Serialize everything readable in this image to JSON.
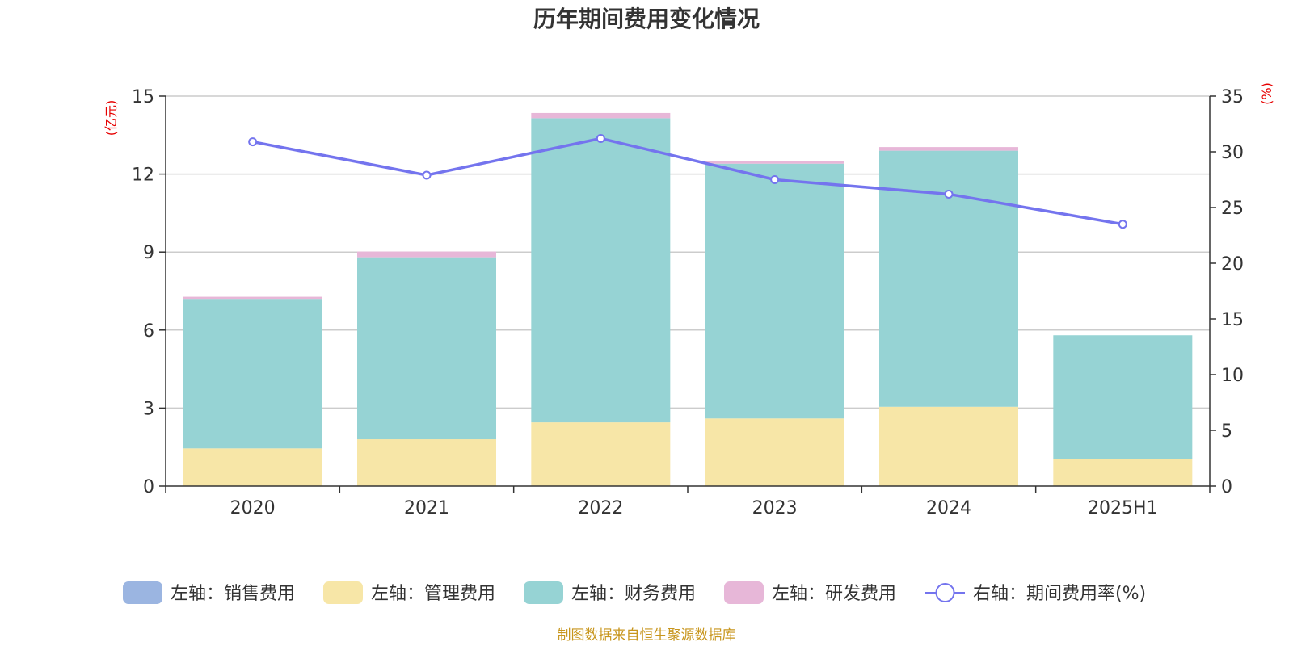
{
  "chart_data": {
    "type": "bar",
    "title": "历年期间费用变化情况",
    "categories": [
      "2020",
      "2021",
      "2022",
      "2023",
      "2024",
      "2025H1"
    ],
    "left_axis": {
      "unit_label": "(亿元)",
      "ylim": [
        0,
        15
      ],
      "ticks": [
        "0",
        "3",
        "6",
        "9",
        "12",
        "15"
      ]
    },
    "right_axis": {
      "unit_label": "(%)",
      "ylim": [
        0,
        35
      ],
      "ticks": [
        "0",
        "5",
        "10",
        "15",
        "20",
        "25",
        "30",
        "35"
      ]
    },
    "stacked": true,
    "grid": true,
    "legend_position": "bottom",
    "series": [
      {
        "name": "左轴：销售费用",
        "axis": "left",
        "type": "bar",
        "color": "#9bb5e1",
        "values": [
          0,
          0,
          0,
          0,
          0,
          0
        ]
      },
      {
        "name": "左轴：管理费用",
        "axis": "left",
        "type": "bar",
        "color": "#f7e6a7",
        "values": [
          1.45,
          1.8,
          2.45,
          2.6,
          3.05,
          1.05
        ]
      },
      {
        "name": "左轴：财务费用",
        "axis": "left",
        "type": "bar",
        "color": "#96d3d4",
        "values": [
          5.75,
          7.0,
          11.7,
          9.8,
          9.85,
          4.75
        ]
      },
      {
        "name": "左轴：研发费用",
        "axis": "left",
        "type": "bar",
        "color": "#e7b7d8",
        "values": [
          0.08,
          0.22,
          0.2,
          0.1,
          0.14,
          0.0
        ]
      },
      {
        "name": "右轴：期间费用率(%)",
        "axis": "right",
        "type": "line",
        "color": "#7474ee",
        "values": [
          30.9,
          27.9,
          31.2,
          27.5,
          26.2,
          23.5
        ]
      }
    ],
    "source_note": "制图数据来自恒生聚源数据库"
  }
}
